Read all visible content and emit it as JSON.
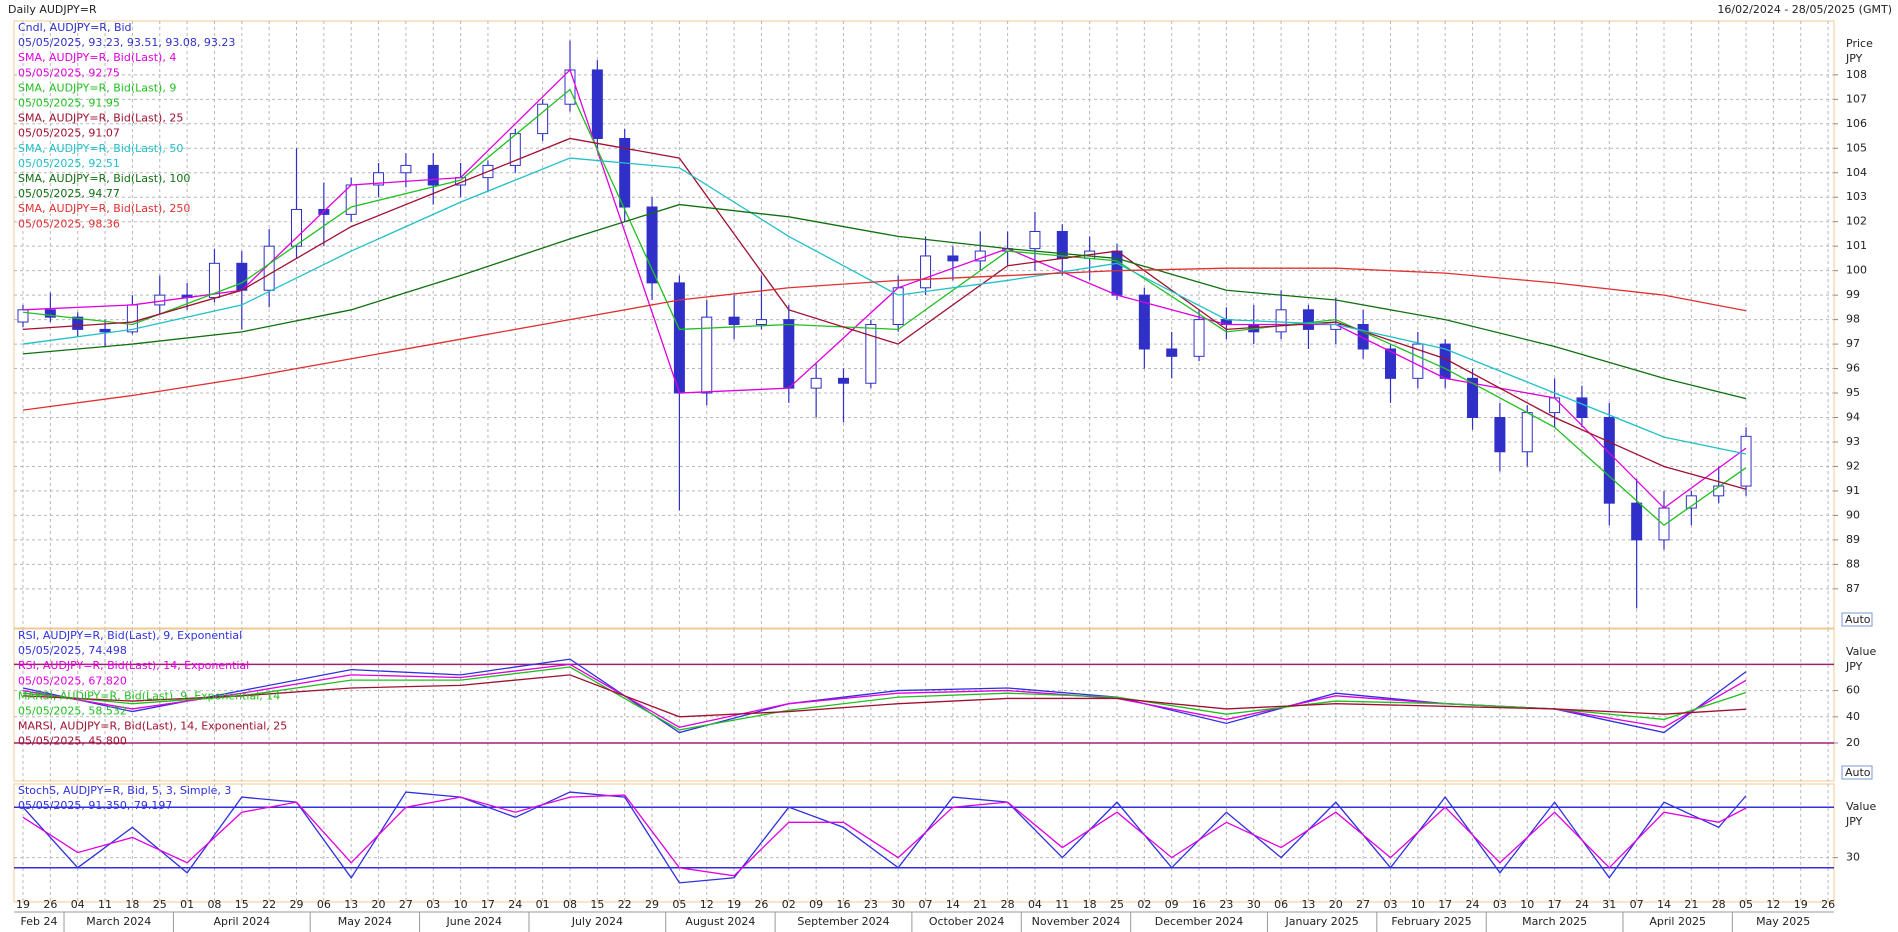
{
  "header": {
    "title": "Daily AUDJPY=R",
    "range": "16/02/2024 - 28/05/2025 (GMT)"
  },
  "chart_data": [
    {
      "type": "candlestick",
      "axis_title": "Price",
      "axis_unit": "JPY",
      "scale_label": "Auto",
      "candle_name": "Cndl, AUDJPY=R, Bid",
      "candle_last": "05/05/2025, 93.23, 93.51, 93.08, 93.23",
      "candle_color": "#3030c8",
      "categories": [
        "19",
        "26",
        "04",
        "11",
        "18",
        "25",
        "01",
        "08",
        "15",
        "22",
        "29",
        "06",
        "13",
        "20",
        "27",
        "03",
        "10",
        "17",
        "24",
        "01",
        "08",
        "15",
        "22",
        "29",
        "05",
        "12",
        "19",
        "26",
        "02",
        "09",
        "16",
        "23",
        "30",
        "07",
        "14",
        "21",
        "28",
        "04",
        "11",
        "18",
        "25",
        "02",
        "09",
        "16",
        "23",
        "30",
        "06",
        "13",
        "20",
        "27",
        "03",
        "10",
        "17",
        "24",
        "03",
        "10",
        "17",
        "24",
        "31",
        "07",
        "14",
        "21",
        "28",
        "05",
        "12",
        "19",
        "26"
      ],
      "months": [
        "Feb 24",
        "March 2024",
        "April 2024",
        "May 2024",
        "June 2024",
        "July 2024",
        "August 2024",
        "September 2024",
        "October 2024",
        "November 2024",
        "December 2024",
        "January 2025",
        "February 2025",
        "March 2025",
        "April 2025",
        "May 2025"
      ],
      "open": [
        97.9,
        98.4,
        98.1,
        97.6,
        97.5,
        98.6,
        99.0,
        98.9,
        100.3,
        99.2,
        101.0,
        102.5,
        102.3,
        103.5,
        104.0,
        104.3,
        103.5,
        103.8,
        104.3,
        105.6,
        106.8,
        108.2,
        105.4,
        102.6,
        99.5,
        95.0,
        98.1,
        97.8,
        98.0,
        95.2,
        95.6,
        95.4,
        97.8,
        99.3,
        100.6,
        100.4,
        100.8,
        100.9,
        101.6,
        100.5,
        100.8,
        99.0,
        96.8,
        96.5,
        98.0,
        97.8,
        97.5,
        98.4,
        97.6,
        97.8,
        96.8,
        95.6,
        97.0,
        95.6,
        94.0,
        92.6,
        94.2,
        94.8,
        94.0,
        90.5,
        89.0,
        90.3,
        90.8,
        91.2,
        null,
        null,
        null
      ],
      "high": [
        98.6,
        99.1,
        98.3,
        98.0,
        99.0,
        99.8,
        99.5,
        100.9,
        100.8,
        101.7,
        105.0,
        103.6,
        103.8,
        104.4,
        104.8,
        104.8,
        104.4,
        104.5,
        105.8,
        107.0,
        109.4,
        108.6,
        105.8,
        103.0,
        99.8,
        98.8,
        99.0,
        99.8,
        98.6,
        96.2,
        96.0,
        98.0,
        99.8,
        101.4,
        101.0,
        101.6,
        101.6,
        102.4,
        101.9,
        101.4,
        101.1,
        99.3,
        97.5,
        98.4,
        98.5,
        98.6,
        99.2,
        98.6,
        98.9,
        98.4,
        97.0,
        97.5,
        97.2,
        96.0,
        94.6,
        94.5,
        95.6,
        95.3,
        94.6,
        91.5,
        91.0,
        91.0,
        92.0,
        93.6,
        null,
        null,
        null
      ],
      "low": [
        97.7,
        97.9,
        97.3,
        96.9,
        97.4,
        98.2,
        98.4,
        98.7,
        97.6,
        98.5,
        100.5,
        101.0,
        102.0,
        103.0,
        103.4,
        102.7,
        103.0,
        103.2,
        104.0,
        105.3,
        106.5,
        105.0,
        102.0,
        98.8,
        90.2,
        94.5,
        97.2,
        97.6,
        94.6,
        94.0,
        93.8,
        95.2,
        97.5,
        99.0,
        99.6,
        100.0,
        100.2,
        100.0,
        99.8,
        99.6,
        98.8,
        96.0,
        95.6,
        96.3,
        97.2,
        97.0,
        97.2,
        96.8,
        97.0,
        96.4,
        94.6,
        95.2,
        95.2,
        93.5,
        91.8,
        92.0,
        93.6,
        93.6,
        89.6,
        86.2,
        88.6,
        89.6,
        90.5,
        90.8,
        null,
        null,
        null
      ],
      "close": [
        98.4,
        98.1,
        97.6,
        97.5,
        98.6,
        99.0,
        98.9,
        100.3,
        99.2,
        101.0,
        102.5,
        102.3,
        103.5,
        104.0,
        104.3,
        103.5,
        103.8,
        104.3,
        105.6,
        106.8,
        108.2,
        105.4,
        102.6,
        99.5,
        95.0,
        98.1,
        97.8,
        98.0,
        95.2,
        95.6,
        95.4,
        97.8,
        99.3,
        100.6,
        100.4,
        100.8,
        100.9,
        101.6,
        100.5,
        100.8,
        99.0,
        96.8,
        96.5,
        98.0,
        97.8,
        97.5,
        98.4,
        97.6,
        97.8,
        96.8,
        95.6,
        97.0,
        95.6,
        94.0,
        92.6,
        94.2,
        94.8,
        94.0,
        90.5,
        89.0,
        90.3,
        90.8,
        91.2,
        93.23,
        null,
        null,
        null
      ],
      "ylim": [
        85.4,
        110.2
      ],
      "yticks": [
        87,
        88,
        89,
        90,
        91,
        92,
        93,
        94,
        95,
        96,
        97,
        98,
        99,
        100,
        101,
        102,
        103,
        104,
        105,
        106,
        107,
        108
      ],
      "series": [
        {
          "name": "SMA, AUDJPY=R, Bid(Last),  4",
          "last": "05/05/2025, 92.75",
          "color": "#e000e0",
          "x": [
            0,
            4,
            8,
            12,
            16,
            20,
            24,
            28,
            32,
            36,
            40,
            44,
            48,
            52,
            56,
            60,
            63
          ],
          "values": [
            98.4,
            98.6,
            99.2,
            103.5,
            103.8,
            108.2,
            95.0,
            95.2,
            99.3,
            100.9,
            99.0,
            97.8,
            97.8,
            95.6,
            94.8,
            90.3,
            92.75
          ]
        },
        {
          "name": "SMA, AUDJPY=R, Bid(Last),  9",
          "last": "05/05/2025, 91.95",
          "color": "#20c020",
          "x": [
            0,
            4,
            8,
            12,
            16,
            20,
            24,
            28,
            32,
            36,
            40,
            44,
            48,
            52,
            56,
            60,
            63
          ],
          "values": [
            98.3,
            97.8,
            99.5,
            102.6,
            103.7,
            107.4,
            97.6,
            97.8,
            97.6,
            100.8,
            100.4,
            97.5,
            98.0,
            96.0,
            93.6,
            89.6,
            91.95
          ]
        },
        {
          "name": "SMA, AUDJPY=R, Bid(Last),  25",
          "last": "05/05/2025, 91.07",
          "color": "#a01030",
          "x": [
            0,
            4,
            8,
            12,
            16,
            20,
            24,
            28,
            32,
            36,
            40,
            44,
            48,
            52,
            56,
            60,
            63
          ],
          "values": [
            97.6,
            97.9,
            99.2,
            101.8,
            103.6,
            105.4,
            104.6,
            98.4,
            97.0,
            100.2,
            100.8,
            97.6,
            97.9,
            96.4,
            94.0,
            92.0,
            91.07
          ]
        },
        {
          "name": "SMA, AUDJPY=R, Bid(Last),  50",
          "last": "05/05/2025, 92.51",
          "color": "#20c0c8",
          "x": [
            0,
            4,
            8,
            12,
            16,
            20,
            24,
            28,
            32,
            36,
            40,
            44,
            48,
            52,
            56,
            60,
            63
          ],
          "values": [
            97.0,
            97.6,
            98.6,
            100.8,
            102.8,
            104.6,
            104.2,
            101.4,
            99.0,
            99.6,
            100.3,
            98.0,
            97.8,
            96.8,
            95.0,
            93.2,
            92.51
          ]
        },
        {
          "name": "SMA, AUDJPY=R, Bid(Last),  100",
          "last": "05/05/2025, 94.77",
          "color": "#107010",
          "x": [
            0,
            4,
            8,
            12,
            16,
            20,
            24,
            28,
            32,
            36,
            40,
            44,
            48,
            52,
            56,
            60,
            63
          ],
          "values": [
            96.6,
            97.0,
            97.5,
            98.4,
            99.8,
            101.3,
            102.7,
            102.2,
            101.4,
            100.9,
            100.5,
            99.2,
            98.8,
            98.0,
            96.9,
            95.6,
            94.77
          ]
        },
        {
          "name": "SMA, AUDJPY=R, Bid(Last),  250",
          "last": "05/05/2025, 98.36",
          "color": "#e03030",
          "x": [
            0,
            4,
            8,
            12,
            16,
            20,
            24,
            28,
            32,
            36,
            40,
            44,
            48,
            52,
            56,
            60,
            63
          ],
          "values": [
            94.3,
            94.9,
            95.6,
            96.4,
            97.2,
            98.0,
            98.8,
            99.3,
            99.6,
            99.8,
            100.0,
            100.1,
            100.1,
            99.9,
            99.5,
            99.0,
            98.36
          ]
        }
      ]
    },
    {
      "type": "line",
      "axis_title": "Value",
      "axis_unit": "JPY",
      "scale_label": "Auto",
      "ylim": [
        -9,
        107
      ],
      "yticks": [
        20,
        40,
        60
      ],
      "bands": [
        20,
        80
      ],
      "band_color": "#a02070",
      "series": [
        {
          "name": "RSI, AUDJPY=R, Bid(Last),  9, Exponential",
          "last": "05/05/2025, 74.498",
          "color": "#3030e0",
          "x": [
            0,
            4,
            8,
            12,
            16,
            20,
            24,
            28,
            32,
            36,
            40,
            44,
            48,
            52,
            56,
            60,
            63
          ],
          "values": [
            62,
            44,
            60,
            76,
            72,
            84,
            28,
            50,
            60,
            62,
            55,
            35,
            58,
            50,
            46,
            28,
            74.498
          ]
        },
        {
          "name": "RSI, AUDJPY=R, Bid(Last),  14, Exponential",
          "last": "05/05/2025, 67.820",
          "color": "#e000e0",
          "x": [
            0,
            4,
            8,
            12,
            16,
            20,
            24,
            28,
            32,
            36,
            40,
            44,
            48,
            52,
            56,
            60,
            63
          ],
          "values": [
            60,
            46,
            58,
            72,
            70,
            80,
            32,
            50,
            58,
            60,
            54,
            38,
            56,
            50,
            46,
            32,
            67.82
          ]
        },
        {
          "name": "MARSI, AUDJPY=R, Bid(Last),  9, Exponential, 14",
          "last": "05/05/2025, 58.532",
          "color": "#20c020",
          "x": [
            0,
            4,
            8,
            12,
            16,
            20,
            24,
            28,
            32,
            36,
            40,
            44,
            48,
            52,
            56,
            60,
            63
          ],
          "values": [
            58,
            50,
            56,
            68,
            68,
            78,
            30,
            45,
            55,
            58,
            55,
            42,
            52,
            50,
            46,
            38,
            58.532
          ]
        },
        {
          "name": "MARSI, AUDJPY=R, Bid(Last),  14, Exponential, 25",
          "last": "05/05/2025, 45.800",
          "color": "#a01030",
          "x": [
            0,
            4,
            8,
            12,
            16,
            20,
            24,
            28,
            32,
            36,
            40,
            44,
            48,
            52,
            56,
            60,
            63
          ],
          "values": [
            56,
            52,
            56,
            62,
            64,
            72,
            40,
            44,
            50,
            54,
            54,
            46,
            50,
            48,
            46,
            42,
            45.8
          ]
        }
      ]
    },
    {
      "type": "line",
      "axis_title": "Value",
      "axis_unit": "JPY",
      "legend_name": "StochS, AUDJPY=R, Bid,  5, 3, Simple, 3",
      "legend_last": "05/05/2025, 91.350, 79.197",
      "ylim": [
        -14,
        103
      ],
      "yticks": [
        30
      ],
      "bands": [
        20,
        80
      ],
      "band_color": "#3030e0",
      "series": [
        {
          "color": "#3030e0",
          "x": [
            0,
            2,
            4,
            6,
            8,
            10,
            12,
            14,
            16,
            18,
            20,
            22,
            24,
            26,
            28,
            30,
            32,
            34,
            36,
            38,
            40,
            42,
            44,
            46,
            48,
            50,
            52,
            54,
            56,
            58,
            60,
            62,
            63
          ],
          "values": [
            80,
            20,
            60,
            15,
            90,
            85,
            10,
            95,
            90,
            70,
            95,
            90,
            5,
            10,
            80,
            60,
            20,
            90,
            85,
            30,
            85,
            20,
            75,
            30,
            85,
            20,
            90,
            15,
            85,
            10,
            85,
            60,
            91.35
          ]
        },
        {
          "color": "#e000e0",
          "x": [
            0,
            2,
            4,
            6,
            8,
            10,
            12,
            14,
            16,
            18,
            20,
            22,
            24,
            26,
            28,
            30,
            32,
            34,
            36,
            38,
            40,
            42,
            44,
            46,
            48,
            50,
            52,
            54,
            56,
            58,
            60,
            62,
            63
          ],
          "values": [
            70,
            35,
            50,
            25,
            75,
            85,
            25,
            80,
            90,
            75,
            90,
            92,
            20,
            12,
            65,
            65,
            30,
            80,
            85,
            40,
            75,
            30,
            65,
            40,
            75,
            30,
            80,
            25,
            75,
            20,
            75,
            65,
            79.197
          ]
        }
      ]
    }
  ]
}
